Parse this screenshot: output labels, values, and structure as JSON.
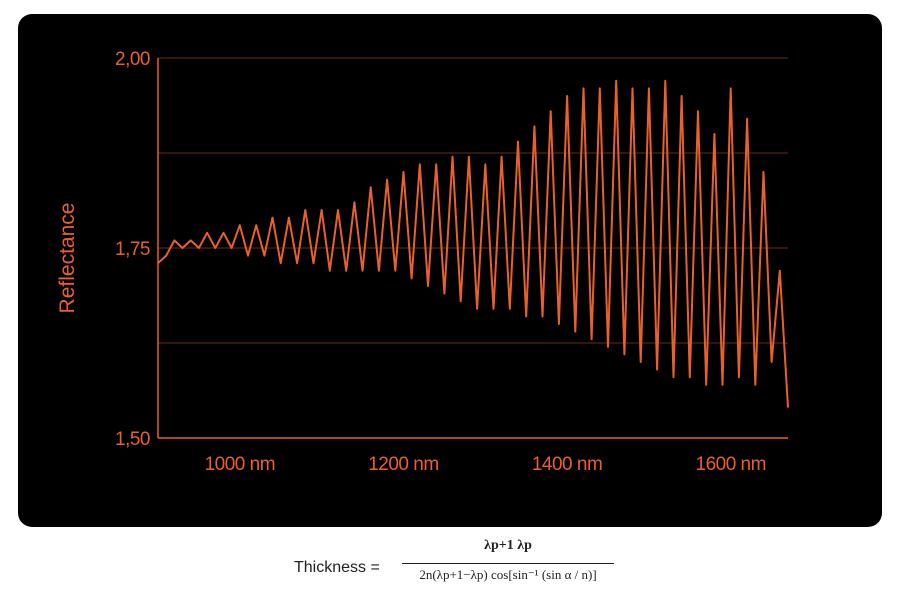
{
  "chart_data": {
    "type": "line",
    "xlabel": "",
    "ylabel": "Reflectance",
    "xlim": [
      900,
      1670
    ],
    "ylim": [
      1.5,
      2.0
    ],
    "x_ticks": [
      1000,
      1200,
      1400,
      1600
    ],
    "x_tick_labels": [
      "1000 nm",
      "1200 nm",
      "1400 nm",
      "1600 nm"
    ],
    "y_ticks": [
      1.5,
      1.75,
      2.0
    ],
    "y_tick_labels": [
      "1,50",
      "1,75",
      "2,00"
    ],
    "y_gridlines": [
      1.5,
      1.625,
      1.75,
      1.875,
      2.0
    ],
    "grid": true,
    "line_color": "#e8612c",
    "background": "#000000",
    "x": [
      900,
      910,
      920,
      930,
      940,
      950,
      960,
      970,
      980,
      990,
      1000,
      1010,
      1020,
      1030,
      1040,
      1050,
      1060,
      1070,
      1080,
      1090,
      1100,
      1110,
      1120,
      1130,
      1140,
      1150,
      1160,
      1170,
      1180,
      1190,
      1200,
      1210,
      1220,
      1230,
      1240,
      1250,
      1260,
      1270,
      1280,
      1290,
      1300,
      1310,
      1320,
      1330,
      1340,
      1350,
      1360,
      1370,
      1380,
      1390,
      1400,
      1410,
      1420,
      1430,
      1440,
      1450,
      1460,
      1470,
      1480,
      1490,
      1500,
      1510,
      1520,
      1530,
      1540,
      1550,
      1560,
      1570,
      1580,
      1590,
      1600,
      1610,
      1620,
      1630,
      1640,
      1650,
      1660,
      1670
    ],
    "y": [
      1.73,
      1.74,
      1.76,
      1.75,
      1.76,
      1.75,
      1.77,
      1.75,
      1.77,
      1.75,
      1.78,
      1.74,
      1.78,
      1.74,
      1.79,
      1.73,
      1.79,
      1.73,
      1.8,
      1.73,
      1.8,
      1.72,
      1.8,
      1.72,
      1.81,
      1.72,
      1.83,
      1.72,
      1.84,
      1.72,
      1.85,
      1.71,
      1.86,
      1.7,
      1.86,
      1.69,
      1.87,
      1.68,
      1.87,
      1.67,
      1.86,
      1.67,
      1.87,
      1.67,
      1.89,
      1.66,
      1.91,
      1.66,
      1.93,
      1.65,
      1.95,
      1.64,
      1.96,
      1.63,
      1.96,
      1.62,
      1.97,
      1.61,
      1.96,
      1.6,
      1.96,
      1.59,
      1.97,
      1.58,
      1.95,
      1.58,
      1.93,
      1.57,
      1.9,
      1.57,
      1.96,
      1.58,
      1.92,
      1.57,
      1.85,
      1.6,
      1.72,
      1.54
    ]
  },
  "formula": {
    "lhs": "Thickness =",
    "numerator": "λp+1 λp",
    "denominator": "2n(λp+1−λp) cos[sin⁻¹ (sin α / n)]"
  }
}
